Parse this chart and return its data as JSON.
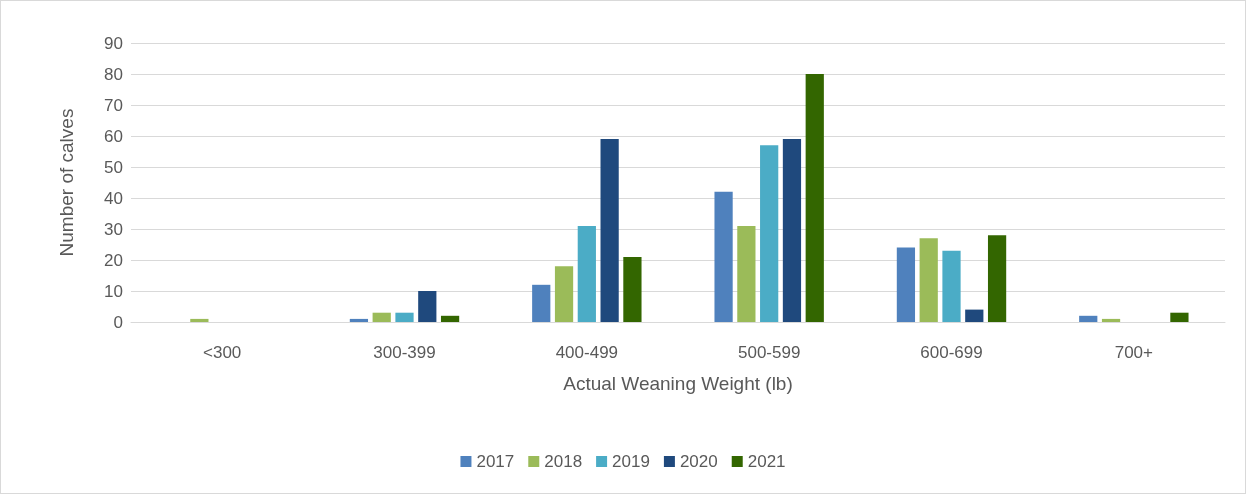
{
  "chart_data": {
    "type": "bar",
    "xlabel": "Actual Weaning Weight (lb)",
    "ylabel": "Number of calves",
    "categories": [
      "<300",
      "300-399",
      "400-499",
      "500-599",
      "600-699",
      "700+"
    ],
    "series": [
      {
        "name": "2017",
        "color": "#4f81bd",
        "values": [
          0,
          1,
          12,
          42,
          24,
          2
        ]
      },
      {
        "name": "2018",
        "color": "#9bbb59",
        "values": [
          1,
          3,
          18,
          31,
          27,
          1
        ]
      },
      {
        "name": "2019",
        "color": "#4bacc6",
        "values": [
          0,
          3,
          31,
          57,
          23,
          0
        ]
      },
      {
        "name": "2020",
        "color": "#1f497d",
        "values": [
          0,
          10,
          59,
          59,
          4,
          0
        ]
      },
      {
        "name": "2021",
        "color": "#336600",
        "values": [
          0,
          2,
          21,
          80,
          28,
          3
        ]
      }
    ],
    "ylim": [
      0,
      90
    ],
    "yticks": [
      0,
      10,
      20,
      30,
      40,
      50,
      60,
      70,
      80,
      90
    ],
    "grid": "y",
    "legend": "bottom"
  }
}
